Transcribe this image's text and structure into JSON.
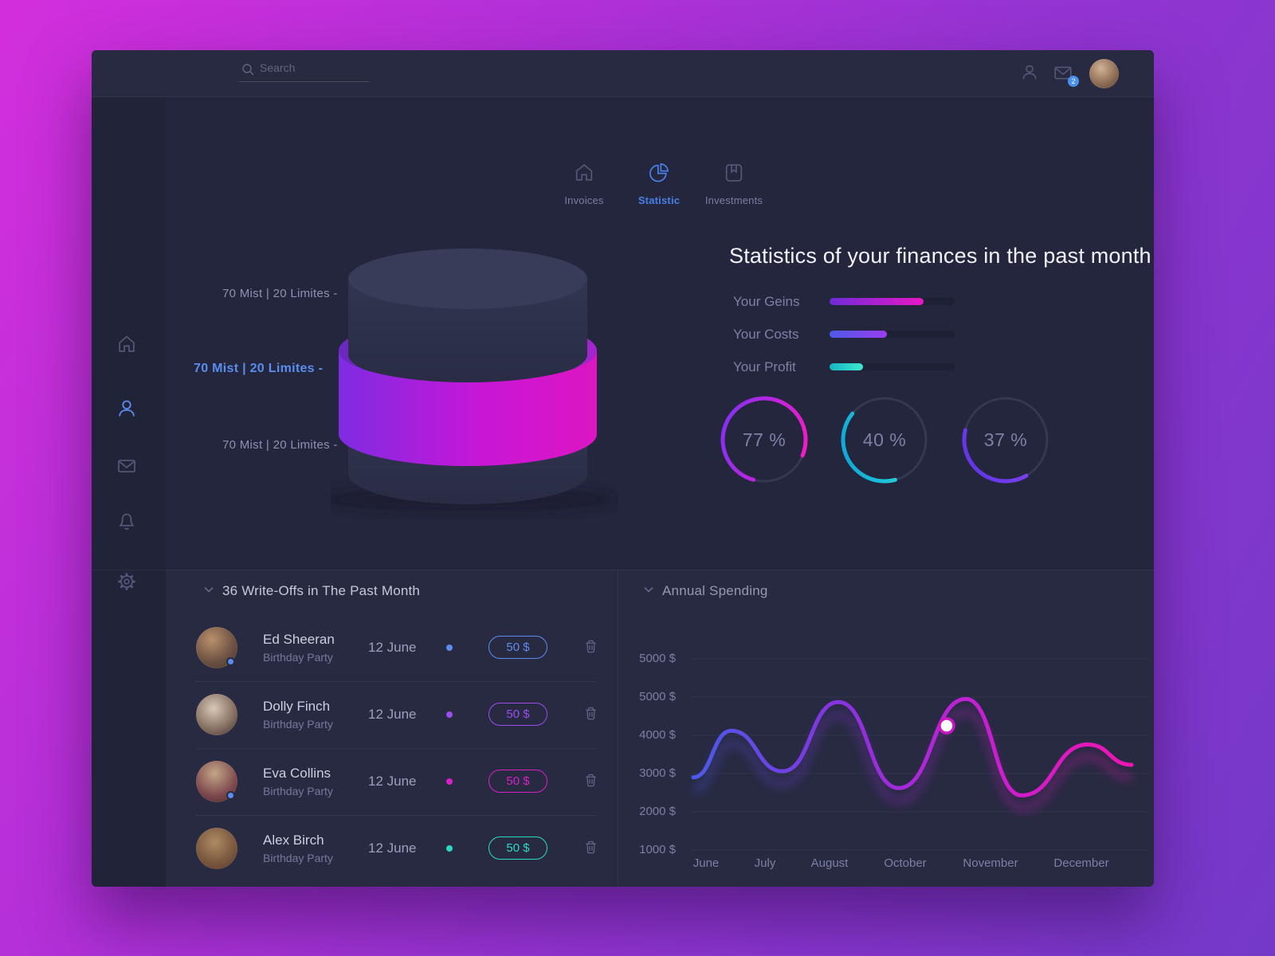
{
  "header": {
    "search_placeholder": "Search",
    "mail_badge": "2"
  },
  "tabs": [
    {
      "label": "Invoices",
      "icon": "home-icon",
      "active": false
    },
    {
      "label": "Statistic",
      "icon": "pie-chart-icon",
      "active": true
    },
    {
      "label": "Investments",
      "icon": "bookmark-icon",
      "active": false
    }
  ],
  "sidebar": {
    "items": [
      {
        "icon": "home-icon",
        "active": false
      },
      {
        "icon": "user-icon",
        "active": true
      },
      {
        "icon": "mail-icon",
        "active": false
      },
      {
        "icon": "bell-icon",
        "active": false
      },
      {
        "icon": "gear-icon",
        "active": false
      }
    ]
  },
  "cylinder": {
    "labels": [
      {
        "text": "70 Mist | 20 Limites -",
        "active": false
      },
      {
        "text": "70 Mist | 20 Limites -",
        "active": true
      },
      {
        "text": "70 Mist | 20 Limites -",
        "active": false
      }
    ],
    "band_colors": [
      "#7e2ce2",
      "#c816d6",
      "#dc16c2"
    ]
  },
  "stats": {
    "title": "Statistics of your finances in the past month",
    "bars": [
      {
        "label": "Your Geins",
        "pct": 75,
        "color_from": "#6f2bd8",
        "color_to": "#e818c4"
      },
      {
        "label": "Your Costs",
        "pct": 46,
        "color_from": "#4b5be8",
        "color_to": "#9b3cf0"
      },
      {
        "label": "Your Profit",
        "pct": 27,
        "color_from": "#17b3c1",
        "color_to": "#3de9cf"
      }
    ],
    "rings": [
      {
        "value": "77 %",
        "pct": 77,
        "color_from": "#ef1cc8",
        "color_to": "#8a2ff0"
      },
      {
        "value": "40 %",
        "pct": 40,
        "color_from": "#35ecd9",
        "color_to": "#12a8d8"
      },
      {
        "value": "37 %",
        "pct": 37,
        "color_from": "#8a4cf4",
        "color_to": "#6436e8"
      }
    ]
  },
  "writeoffs": {
    "title": "36 Write-Offs in The Past Month",
    "rows": [
      {
        "name": "Ed Sheeran",
        "subtitle": "Birthday Party",
        "date": "12 June",
        "amount": "50 $",
        "accent": "#5b8def",
        "badge": true
      },
      {
        "name": "Dolly Finch",
        "subtitle": "Birthday Party",
        "date": "12 June",
        "amount": "50 $",
        "accent": "#9b4df0",
        "badge": false
      },
      {
        "name": "Eva Collins",
        "subtitle": "Birthday Party",
        "date": "12 June",
        "amount": "50 $",
        "accent": "#d920c8",
        "badge": true
      },
      {
        "name": "Alex Birch",
        "subtitle": "Birthday Party",
        "date": "12 June",
        "amount": "50 $",
        "accent": "#2bd9c2",
        "badge": false
      }
    ]
  },
  "annual": {
    "title": "Annual Spending",
    "y_labels": [
      "5000 $",
      "5000 $",
      "4000 $",
      "3000 $",
      "2000 $",
      "1000 $"
    ],
    "months": [
      "June",
      "July",
      "August",
      "October",
      "November",
      "December"
    ]
  },
  "chart_data": {
    "type": "line",
    "title": "Annual Spending",
    "x_tick_labels": [
      "June",
      "July",
      "August",
      "October",
      "November",
      "December"
    ],
    "y_tick_labels": [
      "5000 $",
      "5000 $",
      "4000 $",
      "3000 $",
      "2000 $",
      "1000 $"
    ],
    "ylim": [
      1000,
      5500
    ],
    "grid": true,
    "points": [
      [
        0.0,
        2900
      ],
      [
        0.087,
        4120
      ],
      [
        0.204,
        3060
      ],
      [
        0.331,
        4870
      ],
      [
        0.469,
        2620
      ],
      [
        0.622,
        4950
      ],
      [
        0.749,
        2430
      ],
      [
        0.9,
        3760
      ],
      [
        1.0,
        3230
      ]
    ],
    "marker": {
      "x": 0.578,
      "value": 4250
    },
    "line_gradient": [
      "#4a5ae8",
      "#8833e0",
      "#c61fd2",
      "#f014b2"
    ]
  }
}
